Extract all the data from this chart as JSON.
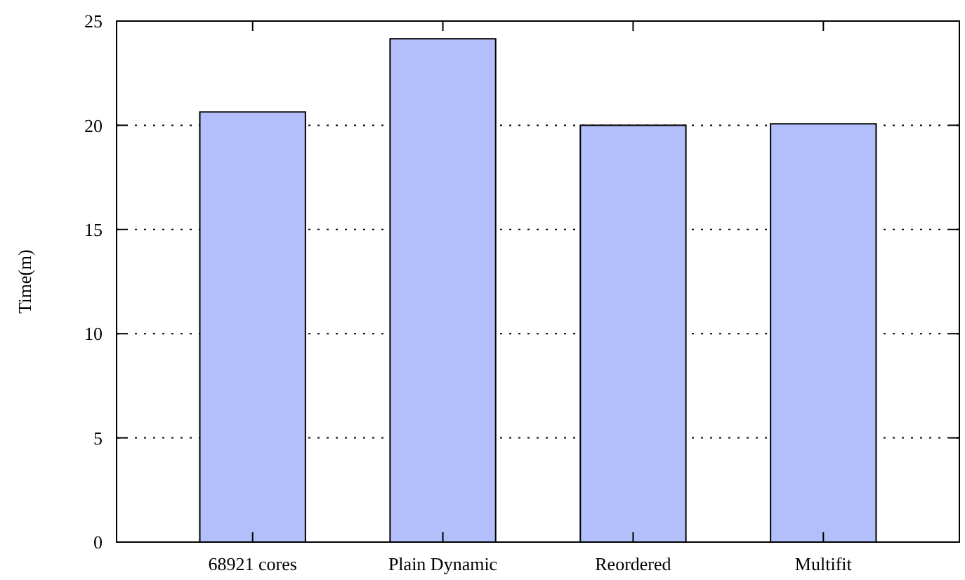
{
  "chart_data": {
    "type": "bar",
    "ylabel": "Time(m)",
    "categories": [
      "68921 cores",
      "Plain Dynamic",
      "Reordered",
      "Multifit"
    ],
    "values": [
      20.64,
      24.15,
      20.0,
      20.07
    ],
    "color": "#b3bffa",
    "ylim": [
      0,
      25
    ],
    "yticks": [
      0,
      5,
      10,
      15,
      20,
      25
    ],
    "grid": "y"
  }
}
